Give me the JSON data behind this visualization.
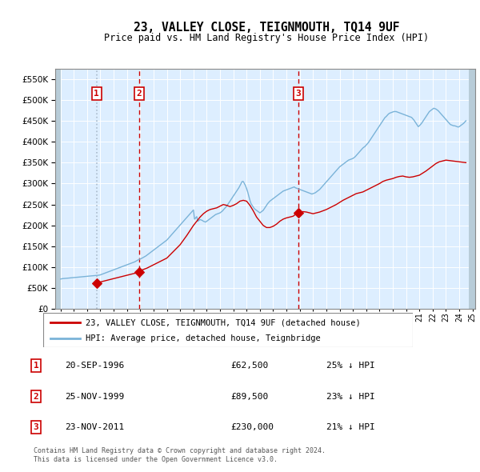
{
  "title": "23, VALLEY CLOSE, TEIGNMOUTH, TQ14 9UF",
  "subtitle": "Price paid vs. HM Land Registry's House Price Index (HPI)",
  "legend_line1": "23, VALLEY CLOSE, TEIGNMOUTH, TQ14 9UF (detached house)",
  "legend_line2": "HPI: Average price, detached house, Teignbridge",
  "footer1": "Contains HM Land Registry data © Crown copyright and database right 2024.",
  "footer2": "This data is licensed under the Open Government Licence v3.0.",
  "sales": [
    {
      "num": 1,
      "date": "20-SEP-1996",
      "price": 62500,
      "year": 1996.72,
      "pct": "25% ↓ HPI"
    },
    {
      "num": 2,
      "date": "25-NOV-1999",
      "price": 89500,
      "year": 1999.9,
      "pct": "23% ↓ HPI"
    },
    {
      "num": 3,
      "date": "23-NOV-2011",
      "price": 230000,
      "year": 2011.9,
      "pct": "21% ↓ HPI"
    }
  ],
  "hpi_x": [
    1994.0,
    1994.083,
    1994.167,
    1994.25,
    1994.333,
    1994.417,
    1994.5,
    1994.583,
    1994.667,
    1994.75,
    1994.833,
    1994.917,
    1995.0,
    1995.083,
    1995.167,
    1995.25,
    1995.333,
    1995.417,
    1995.5,
    1995.583,
    1995.667,
    1995.75,
    1995.833,
    1995.917,
    1996.0,
    1996.083,
    1996.167,
    1996.25,
    1996.333,
    1996.417,
    1996.5,
    1996.583,
    1996.667,
    1996.75,
    1996.833,
    1996.917,
    1997.0,
    1997.083,
    1997.167,
    1997.25,
    1997.333,
    1997.417,
    1997.5,
    1997.583,
    1997.667,
    1997.75,
    1997.833,
    1997.917,
    1998.0,
    1998.083,
    1998.167,
    1998.25,
    1998.333,
    1998.417,
    1998.5,
    1998.583,
    1998.667,
    1998.75,
    1998.833,
    1998.917,
    1999.0,
    1999.083,
    1999.167,
    1999.25,
    1999.333,
    1999.417,
    1999.5,
    1999.583,
    1999.667,
    1999.75,
    1999.833,
    1999.917,
    2000.0,
    2000.083,
    2000.167,
    2000.25,
    2000.333,
    2000.417,
    2000.5,
    2000.583,
    2000.667,
    2000.75,
    2000.833,
    2000.917,
    2001.0,
    2001.083,
    2001.167,
    2001.25,
    2001.333,
    2001.417,
    2001.5,
    2001.583,
    2001.667,
    2001.75,
    2001.833,
    2001.917,
    2002.0,
    2002.083,
    2002.167,
    2002.25,
    2002.333,
    2002.417,
    2002.5,
    2002.583,
    2002.667,
    2002.75,
    2002.833,
    2002.917,
    2003.0,
    2003.083,
    2003.167,
    2003.25,
    2003.333,
    2003.417,
    2003.5,
    2003.583,
    2003.667,
    2003.75,
    2003.833,
    2003.917,
    2004.0,
    2004.083,
    2004.167,
    2004.25,
    2004.333,
    2004.417,
    2004.5,
    2004.583,
    2004.667,
    2004.75,
    2004.833,
    2004.917,
    2005.0,
    2005.083,
    2005.167,
    2005.25,
    2005.333,
    2005.417,
    2005.5,
    2005.583,
    2005.667,
    2005.75,
    2005.833,
    2005.917,
    2006.0,
    2006.083,
    2006.167,
    2006.25,
    2006.333,
    2006.417,
    2006.5,
    2006.583,
    2006.667,
    2006.75,
    2006.833,
    2006.917,
    2007.0,
    2007.083,
    2007.167,
    2007.25,
    2007.333,
    2007.417,
    2007.5,
    2007.583,
    2007.667,
    2007.75,
    2007.833,
    2007.917,
    2008.0,
    2008.083,
    2008.167,
    2008.25,
    2008.333,
    2008.417,
    2008.5,
    2008.583,
    2008.667,
    2008.75,
    2008.833,
    2008.917,
    2009.0,
    2009.083,
    2009.167,
    2009.25,
    2009.333,
    2009.417,
    2009.5,
    2009.583,
    2009.667,
    2009.75,
    2009.833,
    2009.917,
    2010.0,
    2010.083,
    2010.167,
    2010.25,
    2010.333,
    2010.417,
    2010.5,
    2010.583,
    2010.667,
    2010.75,
    2010.833,
    2010.917,
    2011.0,
    2011.083,
    2011.167,
    2011.25,
    2011.333,
    2011.417,
    2011.5,
    2011.583,
    2011.667,
    2011.75,
    2011.833,
    2011.917,
    2012.0,
    2012.083,
    2012.167,
    2012.25,
    2012.333,
    2012.417,
    2012.5,
    2012.583,
    2012.667,
    2012.75,
    2012.833,
    2012.917,
    2013.0,
    2013.083,
    2013.167,
    2013.25,
    2013.333,
    2013.417,
    2013.5,
    2013.583,
    2013.667,
    2013.75,
    2013.833,
    2013.917,
    2014.0,
    2014.083,
    2014.167,
    2014.25,
    2014.333,
    2014.417,
    2014.5,
    2014.583,
    2014.667,
    2014.75,
    2014.833,
    2014.917,
    2015.0,
    2015.083,
    2015.167,
    2015.25,
    2015.333,
    2015.417,
    2015.5,
    2015.583,
    2015.667,
    2015.75,
    2015.833,
    2015.917,
    2016.0,
    2016.083,
    2016.167,
    2016.25,
    2016.333,
    2016.417,
    2016.5,
    2016.583,
    2016.667,
    2016.75,
    2016.833,
    2016.917,
    2017.0,
    2017.083,
    2017.167,
    2017.25,
    2017.333,
    2017.417,
    2017.5,
    2017.583,
    2017.667,
    2017.75,
    2017.833,
    2017.917,
    2018.0,
    2018.083,
    2018.167,
    2018.25,
    2018.333,
    2018.417,
    2018.5,
    2018.583,
    2018.667,
    2018.75,
    2018.833,
    2018.917,
    2019.0,
    2019.083,
    2019.167,
    2019.25,
    2019.333,
    2019.417,
    2019.5,
    2019.583,
    2019.667,
    2019.75,
    2019.833,
    2019.917,
    2020.0,
    2020.083,
    2020.167,
    2020.25,
    2020.333,
    2020.417,
    2020.5,
    2020.583,
    2020.667,
    2020.75,
    2020.833,
    2020.917,
    2021.0,
    2021.083,
    2021.167,
    2021.25,
    2021.333,
    2021.417,
    2021.5,
    2021.583,
    2021.667,
    2021.75,
    2021.833,
    2021.917,
    2022.0,
    2022.083,
    2022.167,
    2022.25,
    2022.333,
    2022.417,
    2022.5,
    2022.583,
    2022.667,
    2022.75,
    2022.833,
    2022.917,
    2023.0,
    2023.083,
    2023.167,
    2023.25,
    2023.333,
    2023.417,
    2023.5,
    2023.583,
    2023.667,
    2023.75,
    2023.833,
    2023.917,
    2024.0,
    2024.083,
    2024.167,
    2024.25,
    2024.333,
    2024.417,
    2024.5
  ],
  "hpi_y": [
    72000,
    72500,
    73000,
    73200,
    73500,
    73800,
    74000,
    74200,
    74500,
    74700,
    75000,
    75200,
    75500,
    75700,
    76000,
    76200,
    76500,
    76700,
    77000,
    77200,
    77500,
    77700,
    78000,
    78200,
    78500,
    78800,
    79000,
    79300,
    79500,
    79800,
    80000,
    80200,
    80500,
    80800,
    81000,
    81300,
    82000,
    83000,
    84000,
    85000,
    86000,
    87000,
    88000,
    89000,
    90000,
    91000,
    92000,
    93000,
    94000,
    95000,
    96000,
    97000,
    98000,
    99000,
    100000,
    101000,
    102000,
    103000,
    104000,
    105000,
    106000,
    107000,
    108000,
    109000,
    110000,
    111000,
    112000,
    113000,
    114500,
    116000,
    117500,
    119000,
    120000,
    121000,
    122500,
    124000,
    125500,
    127000,
    129000,
    131000,
    133000,
    135000,
    137000,
    139000,
    141000,
    143000,
    145000,
    147000,
    149000,
    151000,
    153000,
    155000,
    157000,
    159000,
    161000,
    163000,
    165000,
    168000,
    171000,
    174000,
    177000,
    180000,
    183000,
    186000,
    189000,
    192000,
    195000,
    198000,
    201000,
    204000,
    207000,
    210000,
    213000,
    216000,
    219000,
    222000,
    225000,
    228000,
    231000,
    234000,
    237000,
    215000,
    218000,
    221000,
    210000,
    212000,
    214000,
    213000,
    212000,
    210000,
    209000,
    208000,
    210000,
    212000,
    214000,
    216000,
    218000,
    220000,
    222000,
    224000,
    226000,
    227000,
    228000,
    229000,
    230000,
    232000,
    234000,
    237000,
    240000,
    243000,
    246000,
    250000,
    254000,
    258000,
    262000,
    266000,
    270000,
    274000,
    278000,
    282000,
    286000,
    290000,
    295000,
    300000,
    305000,
    305000,
    300000,
    295000,
    288000,
    280000,
    270000,
    260000,
    252000,
    248000,
    244000,
    240000,
    238000,
    236000,
    234000,
    232000,
    230000,
    232000,
    234000,
    236000,
    240000,
    244000,
    248000,
    252000,
    255000,
    258000,
    260000,
    262000,
    264000,
    266000,
    268000,
    270000,
    272000,
    274000,
    276000,
    278000,
    280000,
    282000,
    283000,
    284000,
    285000,
    286000,
    287000,
    288000,
    289000,
    290000,
    291000,
    292000,
    290000,
    289000,
    288000,
    287000,
    286000,
    285000,
    284000,
    283000,
    282000,
    281000,
    280000,
    279000,
    278000,
    277000,
    276000,
    275000,
    276000,
    277000,
    278000,
    280000,
    282000,
    284000,
    286000,
    289000,
    292000,
    295000,
    298000,
    301000,
    304000,
    307000,
    310000,
    313000,
    316000,
    319000,
    322000,
    325000,
    328000,
    331000,
    334000,
    337000,
    340000,
    342000,
    344000,
    346000,
    348000,
    350000,
    352000,
    354000,
    356000,
    357000,
    358000,
    359000,
    360000,
    362000,
    364000,
    367000,
    370000,
    373000,
    376000,
    379000,
    382000,
    385000,
    387000,
    389000,
    392000,
    395000,
    398000,
    402000,
    406000,
    410000,
    414000,
    418000,
    422000,
    426000,
    430000,
    434000,
    438000,
    442000,
    446000,
    450000,
    454000,
    458000,
    460000,
    463000,
    466000,
    468000,
    469000,
    470000,
    471000,
    472000,
    472000,
    472000,
    471000,
    470000,
    469000,
    468000,
    467000,
    466000,
    465000,
    464000,
    463000,
    462000,
    461000,
    460000,
    459000,
    458000,
    455000,
    452000,
    448000,
    444000,
    440000,
    436000,
    438000,
    441000,
    444000,
    448000,
    452000,
    456000,
    460000,
    464000,
    468000,
    472000,
    474000,
    476000,
    478000,
    480000,
    479000,
    478000,
    476000,
    474000,
    471000,
    468000,
    465000,
    462000,
    459000,
    456000,
    453000,
    450000,
    447000,
    444000,
    441000,
    440000,
    439000,
    438000,
    438000,
    437000,
    436000,
    435000,
    436000,
    438000,
    440000,
    442000,
    444000,
    447000,
    450000
  ],
  "price_x": [
    1996.72,
    1997.0,
    1997.25,
    1997.5,
    1997.75,
    1998.0,
    1998.25,
    1998.5,
    1998.75,
    1999.0,
    1999.25,
    1999.5,
    1999.75,
    1999.9,
    2000.0,
    2000.25,
    2000.5,
    2000.75,
    2001.0,
    2001.25,
    2001.5,
    2001.75,
    2002.0,
    2002.25,
    2002.5,
    2002.75,
    2003.0,
    2003.25,
    2003.5,
    2003.75,
    2004.0,
    2004.25,
    2004.5,
    2004.75,
    2005.0,
    2005.25,
    2005.5,
    2005.75,
    2006.0,
    2006.25,
    2006.5,
    2006.75,
    2007.0,
    2007.25,
    2007.5,
    2007.75,
    2008.0,
    2008.25,
    2008.5,
    2008.75,
    2009.0,
    2009.25,
    2009.5,
    2009.75,
    2010.0,
    2010.25,
    2010.5,
    2010.75,
    2011.0,
    2011.25,
    2011.5,
    2011.75,
    2011.9,
    2012.0,
    2012.25,
    2012.5,
    2012.75,
    2013.0,
    2013.25,
    2013.5,
    2013.75,
    2014.0,
    2014.25,
    2014.5,
    2014.75,
    2015.0,
    2015.25,
    2015.5,
    2015.75,
    2016.0,
    2016.25,
    2016.5,
    2016.75,
    2017.0,
    2017.25,
    2017.5,
    2017.75,
    2018.0,
    2018.25,
    2018.5,
    2018.75,
    2019.0,
    2019.25,
    2019.5,
    2019.75,
    2020.0,
    2020.25,
    2020.5,
    2020.75,
    2021.0,
    2021.25,
    2021.5,
    2021.75,
    2022.0,
    2022.25,
    2022.5,
    2022.75,
    2023.0,
    2023.25,
    2023.5,
    2023.75,
    2024.0,
    2024.25,
    2024.5
  ],
  "price_y": [
    62500,
    65000,
    67000,
    69000,
    71000,
    73000,
    75000,
    77000,
    79000,
    81000,
    83000,
    85000,
    87000,
    89500,
    92000,
    95000,
    98000,
    102000,
    106000,
    110000,
    114000,
    118000,
    122000,
    130000,
    138000,
    146000,
    154000,
    165000,
    176000,
    188000,
    200000,
    210000,
    220000,
    228000,
    234000,
    238000,
    240000,
    242000,
    246000,
    250000,
    248000,
    245000,
    248000,
    252000,
    258000,
    260000,
    258000,
    248000,
    235000,
    220000,
    210000,
    200000,
    195000,
    195000,
    198000,
    203000,
    210000,
    215000,
    218000,
    220000,
    222000,
    228000,
    230000,
    232000,
    233000,
    232000,
    230000,
    228000,
    230000,
    232000,
    235000,
    238000,
    242000,
    246000,
    250000,
    255000,
    260000,
    264000,
    268000,
    272000,
    276000,
    278000,
    280000,
    284000,
    288000,
    292000,
    296000,
    300000,
    305000,
    308000,
    310000,
    312000,
    315000,
    317000,
    318000,
    316000,
    315000,
    316000,
    318000,
    320000,
    325000,
    330000,
    336000,
    342000,
    348000,
    352000,
    354000,
    356000,
    355000,
    354000,
    353000,
    352000,
    351000,
    350000
  ],
  "ylim": [
    0,
    575000
  ],
  "xlim": [
    1993.6,
    2025.2
  ],
  "price_color": "#cc0000",
  "hpi_color": "#7ab3d8",
  "sale1_vline_color": "#aabbcc",
  "sale23_vline_color": "#cc0000",
  "background_color": "#ddeeff",
  "grid_color": "#ffffff",
  "box_color": "#cc0000",
  "hatch_color": "#c8d8e8",
  "yticks": [
    0,
    50000,
    100000,
    150000,
    200000,
    250000,
    300000,
    350000,
    400000,
    450000,
    500000,
    550000
  ]
}
